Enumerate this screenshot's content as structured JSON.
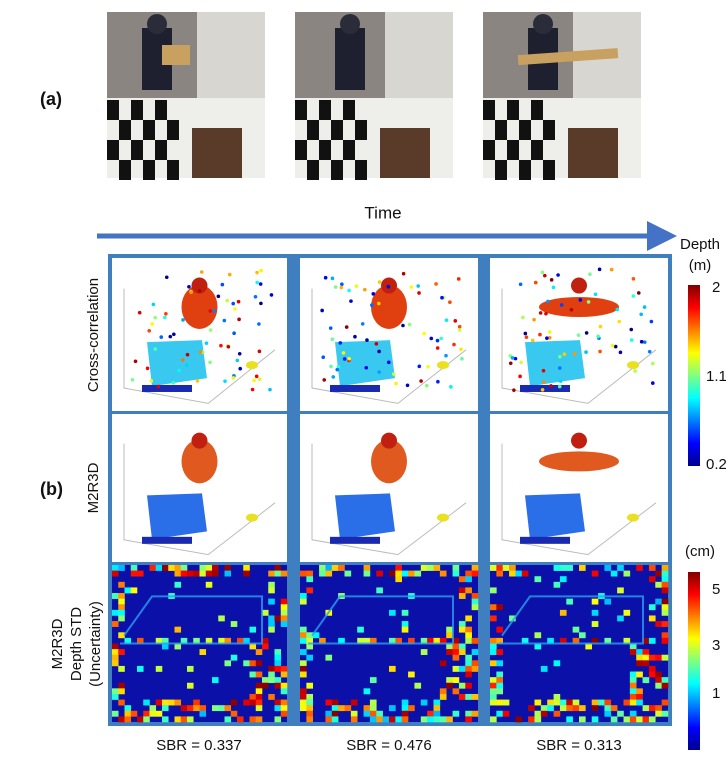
{
  "panel_a": {
    "label": "(a)"
  },
  "time_label": "Time",
  "panel_b": {
    "label": "(b)",
    "row_labels": {
      "cross_correlation": "Cross-correlation",
      "m2r3d": "M2R3D",
      "uncertainty": [
        "M2R3D",
        "Depth STD",
        "(Uncertainty)"
      ]
    },
    "sbr_labels": [
      "SBR = 0.337",
      "SBR = 0.476",
      "SBR = 0.313"
    ]
  },
  "depth_colorbar": {
    "title": "Depth",
    "unit": "(m)",
    "ticks": [
      "2",
      "1.1",
      "0.2"
    ]
  },
  "std_colorbar": {
    "unit": "(cm)",
    "ticks": [
      "5",
      "3",
      "1"
    ]
  }
}
